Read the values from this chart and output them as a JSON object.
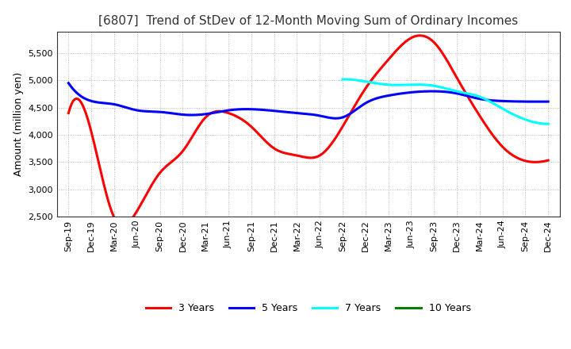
{
  "title": "[6807]  Trend of StDev of 12-Month Moving Sum of Ordinary Incomes",
  "ylabel": "Amount (million yen)",
  "ylim": [
    2500,
    5900
  ],
  "yticks": [
    2500,
    3000,
    3500,
    4000,
    4500,
    5000,
    5500
  ],
  "legend_labels": [
    "3 Years",
    "5 Years",
    "7 Years",
    "10 Years"
  ],
  "legend_colors": [
    "red",
    "blue",
    "cyan",
    "green"
  ],
  "x_labels": [
    "Sep-19",
    "Dec-19",
    "Mar-20",
    "Jun-20",
    "Sep-20",
    "Dec-20",
    "Mar-21",
    "Jun-21",
    "Sep-21",
    "Dec-21",
    "Mar-22",
    "Jun-22",
    "Sep-22",
    "Dec-22",
    "Mar-23",
    "Jun-23",
    "Sep-23",
    "Dec-23",
    "Mar-24",
    "Jun-24",
    "Sep-24",
    "Dec-24"
  ],
  "series_3y": [
    4400,
    4050,
    2480,
    2600,
    3300,
    3700,
    4320,
    4400,
    4150,
    3750,
    3620,
    3620,
    4150,
    4850,
    5380,
    5780,
    5700,
    5050,
    4350,
    3780,
    3520,
    3530
  ],
  "series_5y": [
    4950,
    4620,
    4560,
    4450,
    4420,
    4370,
    4380,
    4450,
    4470,
    4440,
    4400,
    4350,
    4320,
    4580,
    4720,
    4780,
    4800,
    4760,
    4660,
    4620,
    4610,
    4610
  ],
  "series_7y": [
    null,
    null,
    null,
    null,
    null,
    null,
    null,
    null,
    null,
    null,
    null,
    null,
    5020,
    4980,
    4920,
    4920,
    4900,
    4800,
    4700,
    4480,
    4280,
    4200
  ],
  "series_10y": [
    null,
    null,
    null,
    null,
    null,
    null,
    null,
    null,
    null,
    null,
    null,
    null,
    null,
    null,
    null,
    null,
    null,
    null,
    null,
    null,
    null,
    null
  ],
  "background_color": "#ffffff",
  "plot_bg_color": "#ffffff",
  "grid_color": "#aaaaaa",
  "title_fontsize": 11,
  "axis_fontsize": 9,
  "tick_fontsize": 8,
  "linewidth": 2.2
}
